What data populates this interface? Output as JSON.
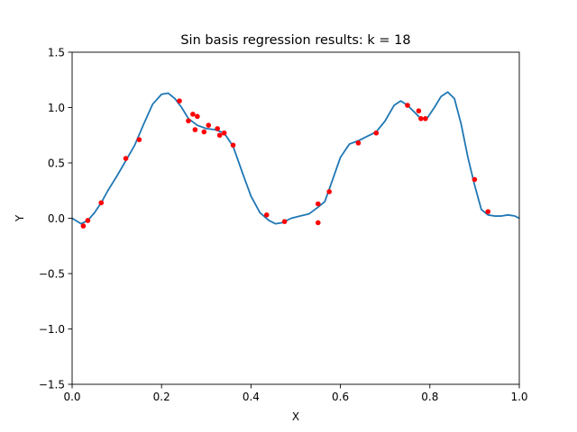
{
  "chart_data": {
    "type": "line",
    "title": "Sin basis regression results: k = 18",
    "xlabel": "X",
    "ylabel": "Y",
    "xlim": [
      0.0,
      1.0
    ],
    "ylim": [
      -1.5,
      1.5
    ],
    "grid": false,
    "x_ticks": [
      "0.0",
      "0.2",
      "0.4",
      "0.6",
      "0.8",
      "1.0"
    ],
    "x_tick_values": [
      0.0,
      0.2,
      0.4,
      0.6,
      0.8,
      1.0
    ],
    "y_ticks": [
      "−1.5",
      "−1.0",
      "−0.5",
      "0.0",
      "0.5",
      "1.0",
      "1.5"
    ],
    "y_tick_values": [
      -1.5,
      -1.0,
      -0.5,
      0.0,
      0.5,
      1.0,
      1.5
    ],
    "series": [
      {
        "kind": "line",
        "color": "#1f77b4",
        "x": [
          0.0,
          0.02,
          0.035,
          0.05,
          0.065,
          0.08,
          0.1,
          0.12,
          0.14,
          0.16,
          0.18,
          0.2,
          0.215,
          0.23,
          0.245,
          0.26,
          0.28,
          0.3,
          0.32,
          0.34,
          0.36,
          0.38,
          0.4,
          0.42,
          0.44,
          0.455,
          0.47,
          0.49,
          0.51,
          0.53,
          0.55,
          0.565,
          0.58,
          0.6,
          0.62,
          0.64,
          0.66,
          0.68,
          0.7,
          0.72,
          0.735,
          0.75,
          0.765,
          0.78,
          0.795,
          0.81,
          0.825,
          0.84,
          0.855,
          0.87,
          0.885,
          0.9,
          0.915,
          0.93,
          0.945,
          0.96,
          0.975,
          0.99,
          1.0
        ],
        "y": [
          0.0,
          -0.05,
          -0.02,
          0.05,
          0.14,
          0.25,
          0.38,
          0.52,
          0.66,
          0.85,
          1.03,
          1.12,
          1.13,
          1.08,
          1.0,
          0.9,
          0.84,
          0.81,
          0.8,
          0.77,
          0.65,
          0.42,
          0.2,
          0.05,
          -0.02,
          -0.05,
          -0.04,
          0.0,
          0.02,
          0.04,
          0.1,
          0.15,
          0.32,
          0.55,
          0.67,
          0.7,
          0.74,
          0.78,
          0.88,
          1.02,
          1.06,
          1.02,
          0.96,
          0.9,
          0.91,
          1.0,
          1.1,
          1.14,
          1.08,
          0.85,
          0.55,
          0.3,
          0.08,
          0.03,
          0.02,
          0.02,
          0.03,
          0.02,
          0.0
        ]
      },
      {
        "kind": "scatter",
        "color": "#ff0000",
        "x": [
          0.025,
          0.035,
          0.065,
          0.12,
          0.15,
          0.24,
          0.26,
          0.27,
          0.275,
          0.28,
          0.295,
          0.305,
          0.325,
          0.33,
          0.34,
          0.36,
          0.435,
          0.475,
          0.55,
          0.55,
          0.575,
          0.64,
          0.68,
          0.75,
          0.775,
          0.78,
          0.79,
          0.9,
          0.93
        ],
        "y": [
          -0.07,
          -0.02,
          0.14,
          0.54,
          0.71,
          1.06,
          0.88,
          0.94,
          0.8,
          0.92,
          0.78,
          0.84,
          0.81,
          0.75,
          0.77,
          0.66,
          0.03,
          -0.03,
          0.13,
          -0.04,
          0.24,
          0.68,
          0.77,
          1.02,
          0.97,
          0.9,
          0.9,
          0.35,
          0.06
        ]
      }
    ]
  }
}
